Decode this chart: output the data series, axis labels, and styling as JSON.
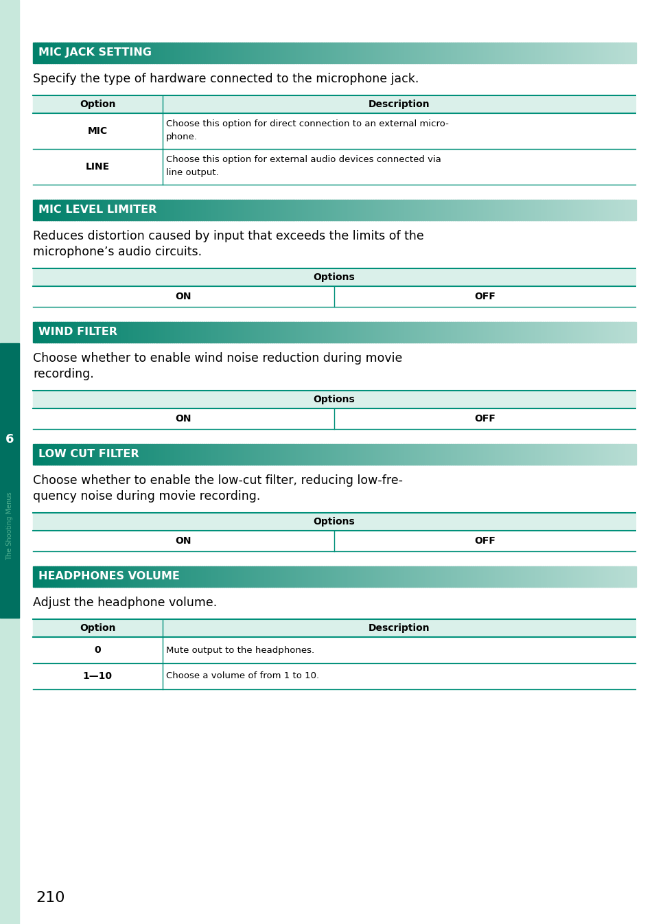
{
  "bg_color": "#ffffff",
  "left_bar_color": "#c8e8dc",
  "header_green_dark": "#00806a",
  "header_green_light": "#b8ddd4",
  "table_header_bg": "#daf0ea",
  "table_line_color": "#00907a",
  "sidebar_dark_bg": "#007060",
  "sidebar_text_color": "#50b090",
  "sections": [
    {
      "title": "MIC JACK SETTING",
      "description": "Specify the type of hardware connected to the microphone jack.",
      "table_type": "option_description",
      "headers": [
        "Option",
        "Description"
      ],
      "rows": [
        [
          "MIC",
          "Choose this option for direct connection to an external micro-\nphone."
        ],
        [
          "LINE",
          "Choose this option for external audio devices connected via\nline output."
        ]
      ]
    },
    {
      "title": "MIC LEVEL LIMITER",
      "description": "Reduces distortion caused by input that exceeds the limits of the\nmicrophone’s audio circuits.",
      "table_type": "on_off",
      "headers": [
        "Options"
      ],
      "rows": [
        [
          "ON",
          "OFF"
        ]
      ]
    },
    {
      "title": "WIND FILTER",
      "description": "Choose whether to enable wind noise reduction during movie\nrecording.",
      "table_type": "on_off",
      "headers": [
        "Options"
      ],
      "rows": [
        [
          "ON",
          "OFF"
        ]
      ]
    },
    {
      "title": "LOW CUT FILTER",
      "description": "Choose whether to enable the low-cut filter, reducing low-fre-\nquency noise during movie recording.",
      "table_type": "on_off",
      "headers": [
        "Options"
      ],
      "rows": [
        [
          "ON",
          "OFF"
        ]
      ]
    },
    {
      "title": "HEADPHONES VOLUME",
      "description": "Adjust the headphone volume.",
      "table_type": "option_description",
      "headers": [
        "Option",
        "Description"
      ],
      "rows": [
        [
          "0",
          "Mute output to the headphones."
        ],
        [
          "1—10",
          "Choose a volume of from 1 to 10."
        ]
      ]
    }
  ],
  "page_number": "210",
  "sidebar_label": "The Shooting Menus",
  "sidebar_number": "6"
}
